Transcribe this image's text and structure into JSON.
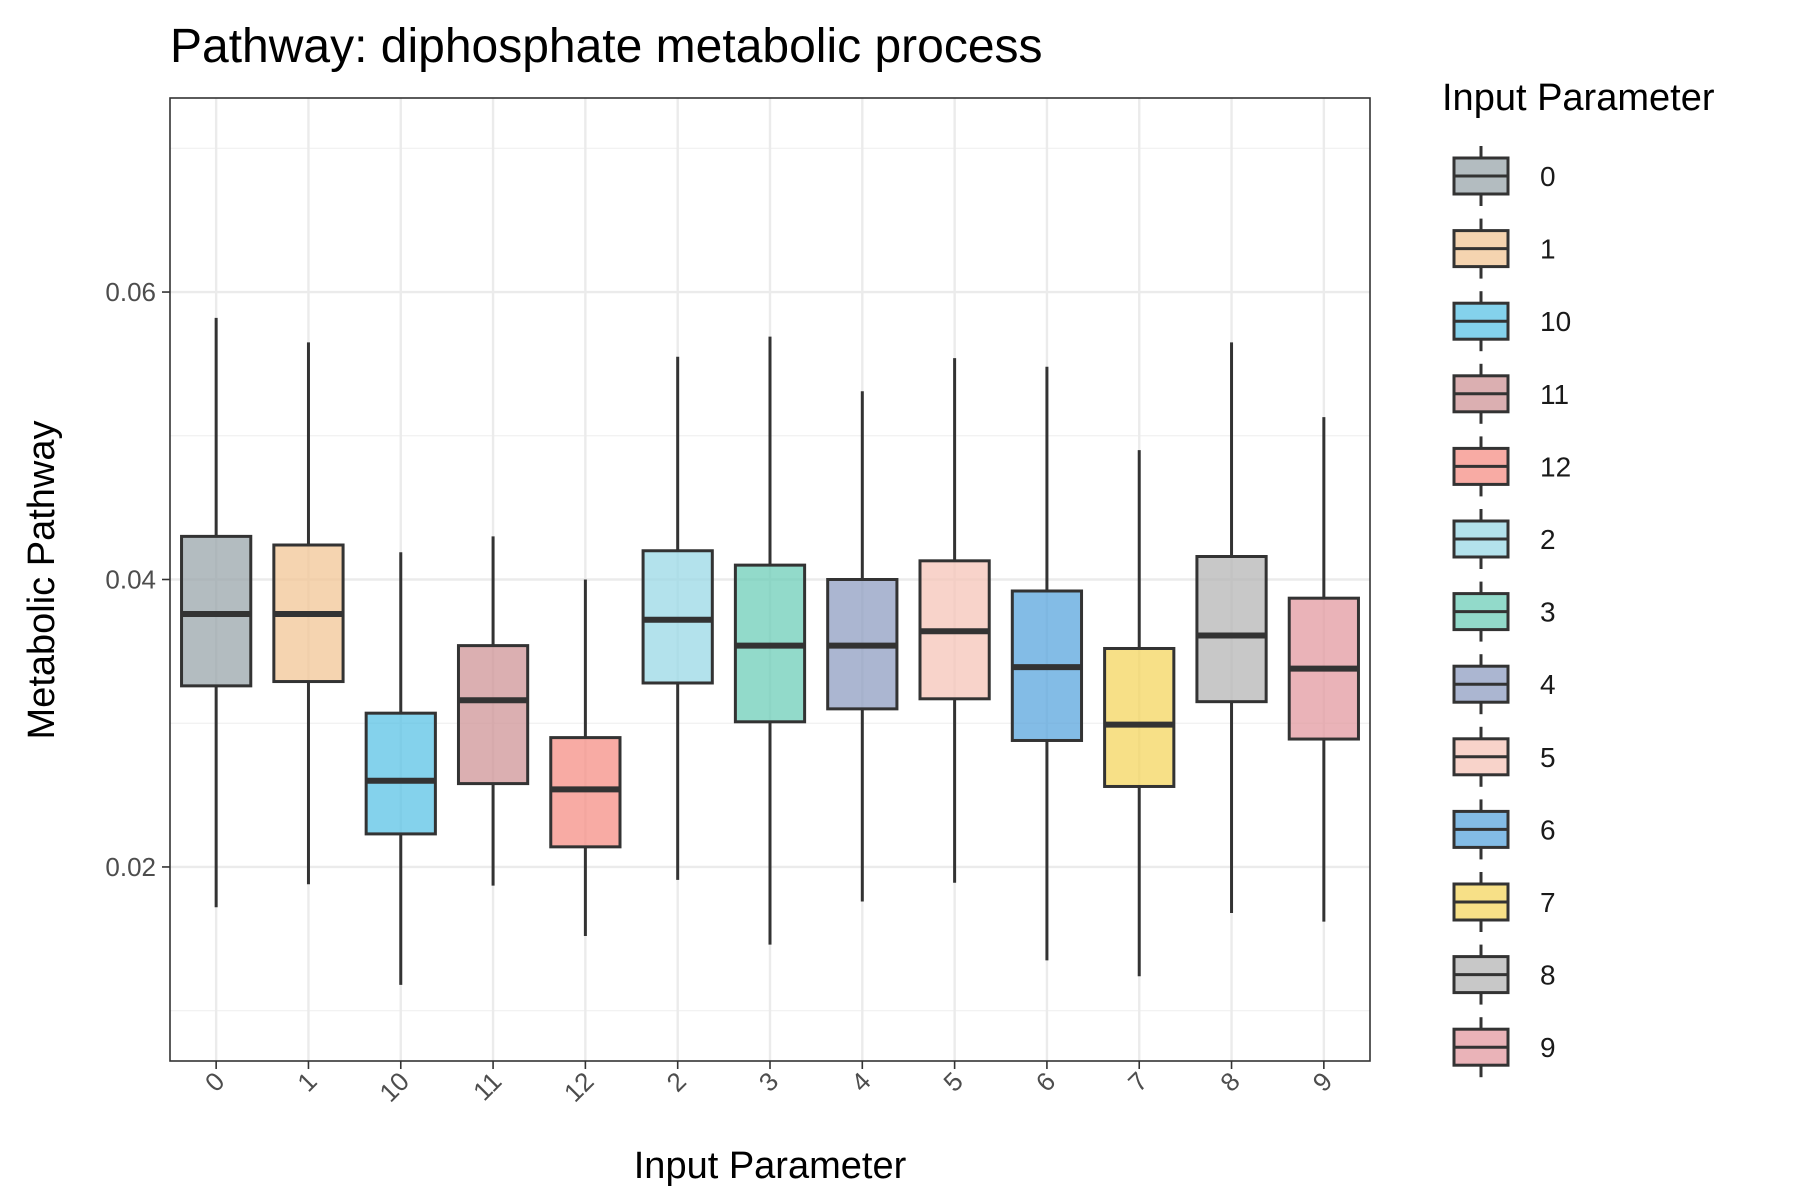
{
  "chart_data": {
    "type": "box",
    "title": "Pathway: diphosphate metabolic process",
    "xlabel": "Input Parameter",
    "ylabel": "Metabolic Pathway",
    "ylim": [
      0.0065,
      0.0735
    ],
    "yticks": [
      "0.02",
      "0.04",
      "0.06"
    ],
    "ytick_values": [
      0.02,
      0.04,
      0.06
    ],
    "grid": true,
    "legend": {
      "title": "Input Parameter",
      "position": "right"
    },
    "categories": [
      "0",
      "1",
      "10",
      "11",
      "12",
      "2",
      "3",
      "4",
      "5",
      "6",
      "7",
      "8",
      "9"
    ],
    "boxes": [
      {
        "label": "0",
        "whisker_low": 0.0172,
        "q1": 0.0326,
        "median": 0.0376,
        "q3": 0.043,
        "whisker_high": 0.0582,
        "color": "#9aa5ab"
      },
      {
        "label": "1",
        "whisker_low": 0.0188,
        "q1": 0.0329,
        "median": 0.0376,
        "q3": 0.0424,
        "whisker_high": 0.0565,
        "color": "#f2c696"
      },
      {
        "label": "10",
        "whisker_low": 0.0118,
        "q1": 0.0223,
        "median": 0.026,
        "q3": 0.0307,
        "whisker_high": 0.0419,
        "color": "#5bc3e6"
      },
      {
        "label": "11",
        "whisker_low": 0.0187,
        "q1": 0.0258,
        "median": 0.0316,
        "q3": 0.0354,
        "whisker_high": 0.043,
        "color": "#cf9497"
      },
      {
        "label": "12",
        "whisker_low": 0.0152,
        "q1": 0.0214,
        "median": 0.0254,
        "q3": 0.029,
        "whisker_high": 0.04,
        "color": "#f58f85"
      },
      {
        "label": "2",
        "whisker_low": 0.0191,
        "q1": 0.0328,
        "median": 0.0372,
        "q3": 0.042,
        "whisker_high": 0.0555,
        "color": "#9ad8e6"
      },
      {
        "label": "3",
        "whisker_low": 0.0146,
        "q1": 0.0301,
        "median": 0.0354,
        "q3": 0.041,
        "whisker_high": 0.0569,
        "color": "#6ecdb8"
      },
      {
        "label": "4",
        "whisker_low": 0.0176,
        "q1": 0.031,
        "median": 0.0354,
        "q3": 0.04,
        "whisker_high": 0.0531,
        "color": "#8f9ec2"
      },
      {
        "label": "5",
        "whisker_low": 0.0189,
        "q1": 0.0317,
        "median": 0.0364,
        "q3": 0.0413,
        "whisker_high": 0.0554,
        "color": "#f6c4b8"
      },
      {
        "label": "6",
        "whisker_low": 0.0135,
        "q1": 0.0288,
        "median": 0.0339,
        "q3": 0.0392,
        "whisker_high": 0.0548,
        "color": "#5aa5de"
      },
      {
        "label": "7",
        "whisker_low": 0.0124,
        "q1": 0.0256,
        "median": 0.0299,
        "q3": 0.0352,
        "whisker_high": 0.049,
        "color": "#f4d65f"
      },
      {
        "label": "8",
        "whisker_low": 0.0168,
        "q1": 0.0315,
        "median": 0.0361,
        "q3": 0.0416,
        "whisker_high": 0.0565,
        "color": "#b5b5b5"
      },
      {
        "label": "9",
        "whisker_low": 0.0162,
        "q1": 0.0289,
        "median": 0.0338,
        "q3": 0.0387,
        "whisker_high": 0.0513,
        "color": "#e39aa0"
      }
    ]
  }
}
